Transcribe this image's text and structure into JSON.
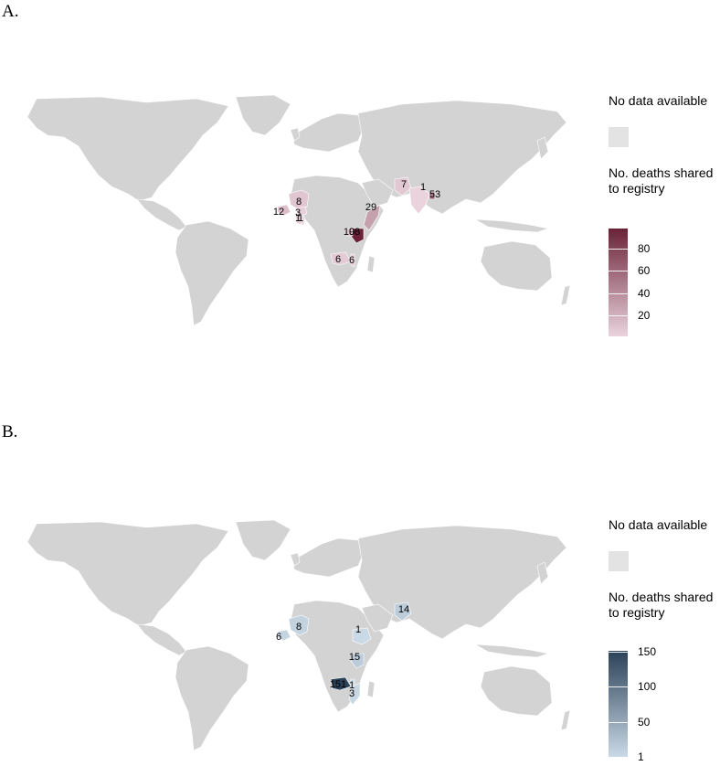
{
  "panels": [
    {
      "label": "A.",
      "legend": {
        "no_data_title": "No data available",
        "count_title": "No. deaths shared to registry",
        "ticks": [
          "80",
          "60",
          "40",
          "20"
        ],
        "tick_values": [
          80,
          60,
          40,
          20
        ],
        "range": [
          1,
          98
        ],
        "color_low": "#ead3dd",
        "color_high": "#6b2238"
      },
      "no_data_color": "#d3d3d3",
      "countries": [
        {
          "name": "Mali",
          "value": 8,
          "label": "8"
        },
        {
          "name": "Guinea",
          "value": 12,
          "label": "12"
        },
        {
          "name": "Burkina Faso",
          "value": 3,
          "label": "3"
        },
        {
          "name": "Ghana",
          "value": 1,
          "label": "1"
        },
        {
          "name": "Togo",
          "value": 1,
          "label": "1"
        },
        {
          "name": "Somalia",
          "value": 29,
          "label": "29"
        },
        {
          "name": "Kenya",
          "value": 98,
          "label": "98"
        },
        {
          "name": "Uganda",
          "value": 10,
          "label": "10"
        },
        {
          "name": "Zambia",
          "value": 6,
          "label": "6"
        },
        {
          "name": "Malawi",
          "value": 6,
          "label": "6"
        },
        {
          "name": "Pakistan",
          "value": 7,
          "label": "7"
        },
        {
          "name": "India",
          "value": 1,
          "label": "1"
        },
        {
          "name": "Bangladesh",
          "value": 53,
          "label": "53"
        }
      ]
    },
    {
      "label": "B.",
      "legend": {
        "no_data_title": "No data available",
        "count_title": "No. deaths shared to registry",
        "ticks": [
          "150",
          "100",
          "50",
          "1"
        ],
        "tick_values": [
          150,
          100,
          50,
          1
        ],
        "range": [
          1,
          151
        ],
        "color_low": "#cad9e6",
        "color_high": "#2b4158"
      },
      "no_data_color": "#d3d3d3",
      "countries": [
        {
          "name": "Mali",
          "value": 8,
          "label": "8"
        },
        {
          "name": "Guinea",
          "value": 6,
          "label": "6"
        },
        {
          "name": "Ethiopia",
          "value": 1,
          "label": "1"
        },
        {
          "name": "Kenya",
          "value": 15,
          "label": "15"
        },
        {
          "name": "Zambia",
          "value": 151,
          "label": "151"
        },
        {
          "name": "Malawi",
          "value": 1,
          "label": "1"
        },
        {
          "name": "Mozambique",
          "value": 3,
          "label": "3"
        },
        {
          "name": "Pakistan",
          "value": 14,
          "label": "14"
        }
      ]
    }
  ]
}
